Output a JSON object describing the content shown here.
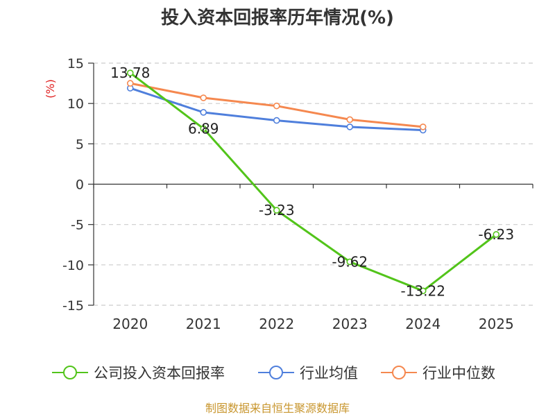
{
  "chart_data": {
    "type": "line",
    "title": "投入资本回报率历年情况(%)",
    "ylabel": "(%)",
    "xlabel": "",
    "categories": [
      "2020",
      "2021",
      "2022",
      "2023",
      "2024",
      "2025"
    ],
    "ylim": [
      -15,
      15
    ],
    "yticks": [
      15,
      10,
      5,
      0,
      -5,
      -10,
      -15
    ],
    "grid": true,
    "legend_position": "bottom",
    "series": [
      {
        "name": "公司投入资本回报率",
        "color": "#52c41a",
        "values": [
          13.78,
          6.89,
          -3.23,
          -9.62,
          -13.22,
          -6.23
        ],
        "labels": [
          "13.78",
          "6.89",
          "-3.23",
          "-9.62",
          "-13.22",
          "-6.23"
        ]
      },
      {
        "name": "行业均值",
        "color": "#4f7fdc",
        "values": [
          11.9,
          8.9,
          7.9,
          7.1,
          6.7,
          null
        ]
      },
      {
        "name": "行业中位数",
        "color": "#f5884f",
        "values": [
          12.5,
          10.7,
          9.7,
          8.0,
          7.1,
          null
        ]
      }
    ]
  },
  "footer": {
    "source": "制图数据来自恒生聚源数据库"
  },
  "colors": {
    "ylabel": "#e02020",
    "source": "#c8962e",
    "grid": "#cccccc",
    "axis": "#333333"
  }
}
